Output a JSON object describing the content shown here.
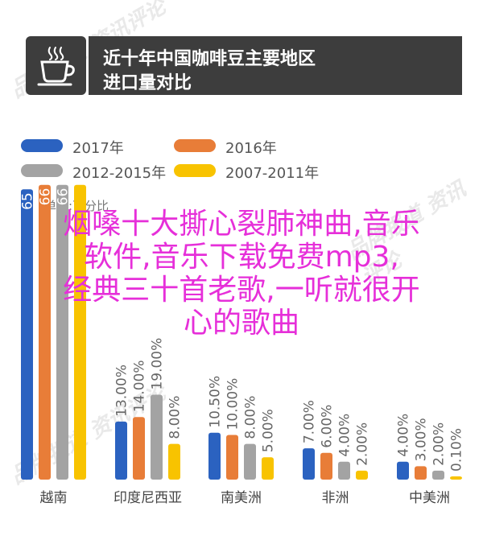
{
  "header": {
    "title_line1": "近十年中国咖啡豆主要地区",
    "title_line2": "进口量对比",
    "icon": "coffee-cup-icon"
  },
  "unit_label": "单位:百分比",
  "overlay": {
    "line1": "烟嗓十大撕心裂肺神曲,音乐",
    "line2": "软件,音乐下载免费mp3,",
    "line3": "经典三十首老歌,一听就很开",
    "line4": "心的歌曲"
  },
  "watermark": "品牌报道 资讯评论",
  "chart_data": {
    "type": "bar",
    "unit": "单位:百分比",
    "categories": [
      "越南",
      "印度尼西亚",
      "南美洲",
      "非洲",
      "中美洲"
    ],
    "series": [
      {
        "name": "2017年",
        "color": "#2b62c0",
        "values": [
          65.0,
          13.0,
          10.5,
          7.0,
          4.0
        ]
      },
      {
        "name": "2016年",
        "color": "#e87d38",
        "values": [
          66.0,
          14.0,
          10.0,
          6.0,
          3.0
        ]
      },
      {
        "name": "2012-2015年",
        "color": "#a3a3a3",
        "values": [
          66.0,
          19.0,
          8.0,
          4.0,
          2.0
        ]
      },
      {
        "name": "2007-2011年",
        "color": "#f8c300",
        "values": [
          66.0,
          8.0,
          5.0,
          2.0,
          0.1
        ]
      }
    ],
    "value_labels": [
      [
        "65",
        "66",
        "66",
        ""
      ],
      [
        "13.00%",
        "14.00%",
        "19.00%",
        "8.00%"
      ],
      [
        "10.50%",
        "10.00%",
        "8.00%",
        "5.00%"
      ],
      [
        "7.00%",
        "6.00%",
        "4.00%",
        "2.00%"
      ],
      [
        "4.00%",
        "3.00%",
        "2.00%",
        "0.10%"
      ]
    ],
    "legend_position": "top",
    "grid": false
  }
}
